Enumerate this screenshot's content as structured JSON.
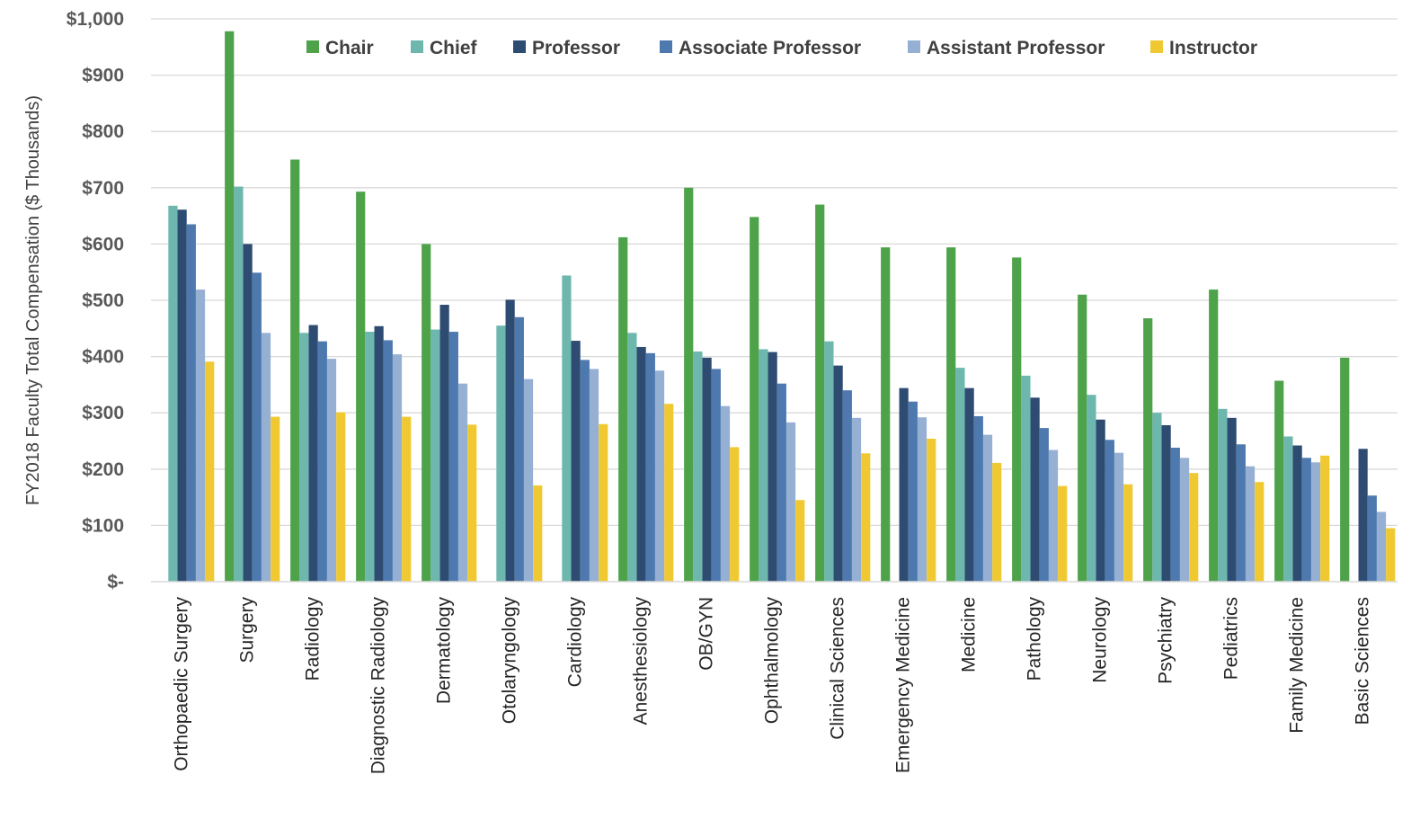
{
  "chart_data": {
    "type": "bar",
    "ylabel": "FY2018 Faculty Total Compensation ($ Thousands)",
    "xlabel": "",
    "ylim": [
      0,
      1000
    ],
    "ytick_values": [
      0,
      100,
      200,
      300,
      400,
      500,
      600,
      700,
      800,
      900,
      1000
    ],
    "ytick_labels": [
      "$-",
      "$100",
      "$200",
      "$300",
      "$400",
      "$500",
      "$600",
      "$700",
      "$800",
      "$900",
      "$1,000"
    ],
    "grid": true,
    "legend_position": "top",
    "categories": [
      "Orthopaedic Surgery",
      "Surgery",
      "Radiology",
      "Diagnostic Radiology",
      "Dermatology",
      "Otolaryngology",
      "Cardiology",
      "Anesthesiology",
      "OB/GYN",
      "Ophthalmology",
      "Clinical Sciences",
      "Emergency Medicine",
      "Medicine",
      "Pathology",
      "Neurology",
      "Psychiatry",
      "Pediatrics",
      "Family Medicine",
      "Basic Sciences"
    ],
    "series": [
      {
        "name": "Chair",
        "color": "#4EA24A",
        "values": [
          null,
          978,
          750,
          693,
          600,
          null,
          null,
          612,
          700,
          648,
          670,
          594,
          594,
          576,
          510,
          468,
          519,
          357,
          398
        ]
      },
      {
        "name": "Chief",
        "color": "#6DB7AE",
        "values": [
          668,
          702,
          442,
          444,
          448,
          455,
          544,
          442,
          409,
          413,
          427,
          null,
          380,
          366,
          332,
          300,
          307,
          258,
          null
        ]
      },
      {
        "name": "Professor",
        "color": "#2E4B72",
        "values": [
          661,
          600,
          456,
          454,
          492,
          501,
          428,
          417,
          398,
          408,
          384,
          344,
          344,
          327,
          288,
          278,
          291,
          242,
          236
        ]
      },
      {
        "name": "Associate Professor",
        "color": "#4D79AE",
        "values": [
          635,
          549,
          427,
          429,
          444,
          470,
          394,
          406,
          378,
          352,
          340,
          320,
          294,
          273,
          252,
          238,
          244,
          220,
          153
        ]
      },
      {
        "name": "Assistant Professor",
        "color": "#96B0D4",
        "values": [
          519,
          442,
          396,
          404,
          352,
          360,
          378,
          375,
          312,
          283,
          291,
          292,
          261,
          234,
          229,
          220,
          205,
          212,
          124
        ]
      },
      {
        "name": "Instructor",
        "color": "#F0C932",
        "values": [
          391,
          293,
          301,
          293,
          279,
          171,
          280,
          316,
          239,
          145,
          228,
          254,
          211,
          170,
          173,
          193,
          177,
          224,
          95
        ]
      }
    ]
  }
}
